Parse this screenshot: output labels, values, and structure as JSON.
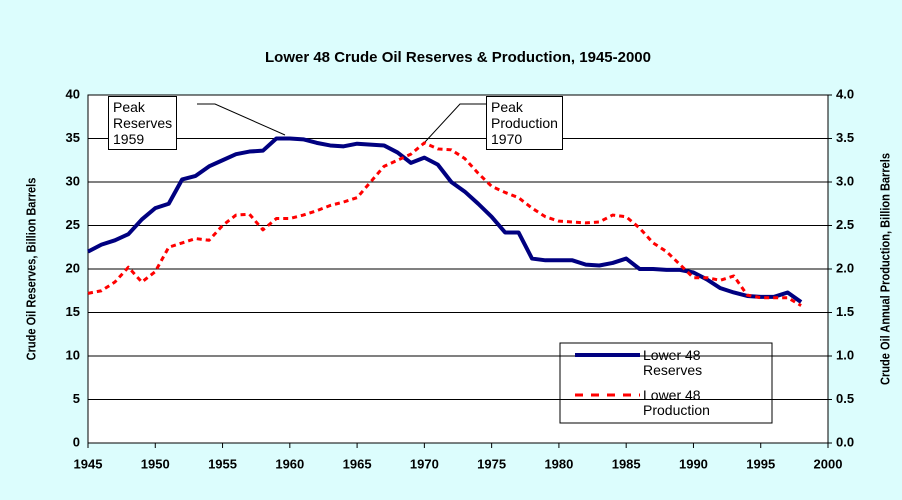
{
  "chart_data": {
    "type": "line",
    "title": "Lower 48 Crude Oil Reserves & Production, 1945-2000",
    "y_label": "Crude Oil Reserves, Billion Barrels",
    "y2_label": "Crude Oil Annual Production, Billion Barrels",
    "x": [
      1945,
      1946,
      1947,
      1948,
      1949,
      1950,
      1951,
      1952,
      1953,
      1954,
      1955,
      1956,
      1957,
      1958,
      1959,
      1960,
      1961,
      1962,
      1963,
      1964,
      1965,
      1966,
      1967,
      1968,
      1969,
      1970,
      1971,
      1972,
      1973,
      1974,
      1975,
      1976,
      1977,
      1978,
      1979,
      1980,
      1981,
      1982,
      1983,
      1984,
      1985,
      1986,
      1987,
      1988,
      1989,
      1990,
      1991,
      1992,
      1993,
      1994,
      1995,
      1996,
      1997,
      1998
    ],
    "series": [
      {
        "name": "Lower 48 Reserves",
        "color": "#000080",
        "axis": "y",
        "values": [
          22,
          22.8,
          23.3,
          24,
          25.7,
          27,
          27.5,
          30.3,
          30.7,
          31.8,
          32.5,
          33.2,
          33.5,
          33.6,
          35,
          35,
          34.9,
          34.5,
          34.2,
          34.1,
          34.4,
          34.3,
          34.2,
          33.4,
          32.2,
          32.8,
          32,
          30,
          28.9,
          27.5,
          26,
          24.2,
          24.2,
          21.2,
          21,
          21,
          21,
          20.5,
          20.4,
          20.7,
          21.2,
          20,
          20,
          19.9,
          19.9,
          19.6,
          18.8,
          17.8,
          17.3,
          16.9,
          16.8,
          16.8,
          17.3,
          16.2
        ]
      },
      {
        "name": "Lower 48 Production",
        "color": "#ff0000",
        "axis": "y2",
        "dashed": true,
        "values": [
          1.72,
          1.75,
          1.85,
          2.02,
          1.85,
          1.97,
          2.25,
          2.3,
          2.35,
          2.33,
          2.5,
          2.62,
          2.63,
          2.45,
          2.58,
          2.58,
          2.62,
          2.67,
          2.73,
          2.77,
          2.82,
          3,
          3.18,
          3.25,
          3.32,
          3.45,
          3.38,
          3.37,
          3.27,
          3.1,
          2.95,
          2.88,
          2.82,
          2.7,
          2.6,
          2.55,
          2.54,
          2.53,
          2.54,
          2.62,
          2.6,
          2.47,
          2.3,
          2.2,
          2.05,
          1.9,
          1.9,
          1.87,
          1.92,
          1.7,
          1.67,
          1.67,
          1.67,
          1.58
        ]
      }
    ],
    "xlim": [
      1945,
      2000
    ],
    "xticks": [
      1945,
      1950,
      1955,
      1960,
      1965,
      1970,
      1975,
      1980,
      1985,
      1990,
      1995,
      2000
    ],
    "ylim": [
      0,
      40
    ],
    "yticks": [
      0,
      5,
      10,
      15,
      20,
      25,
      30,
      35,
      40
    ],
    "y2lim": [
      0,
      4
    ],
    "y2ticks": [
      {
        "value": 0,
        "label": "0.0"
      },
      {
        "value": 0.5,
        "label": "0.5"
      },
      {
        "value": 1,
        "label": "1.0"
      },
      {
        "value": 1.5,
        "label": "1.5"
      },
      {
        "value": 2,
        "label": "2.0"
      },
      {
        "value": 2.5,
        "label": "2.5"
      },
      {
        "value": 3,
        "label": "3.0"
      },
      {
        "value": 3.5,
        "label": "3.5"
      },
      {
        "value": 4,
        "label": "4.0"
      }
    ],
    "grid": true,
    "legend": "lower right",
    "annotations": [
      {
        "text": "Peak Reserves 1959"
      },
      {
        "text": "Peak Production 1970"
      }
    ]
  }
}
